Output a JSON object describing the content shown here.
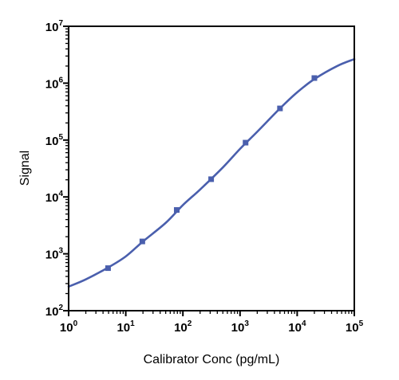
{
  "chart_data": {
    "type": "scatter",
    "title": "",
    "xlabel": "Calibrator Conc (pg/mL)",
    "ylabel": "Signal",
    "x_scale": "log",
    "y_scale": "log",
    "xlim": [
      1,
      100000
    ],
    "ylim": [
      100,
      10000000
    ],
    "x_ticks": [
      {
        "base": "10",
        "exp": "0"
      },
      {
        "base": "10",
        "exp": "1"
      },
      {
        "base": "10",
        "exp": "2"
      },
      {
        "base": "10",
        "exp": "3"
      },
      {
        "base": "10",
        "exp": "4"
      },
      {
        "base": "10",
        "exp": "5"
      }
    ],
    "y_ticks": [
      {
        "base": "10",
        "exp": "2"
      },
      {
        "base": "10",
        "exp": "3"
      },
      {
        "base": "10",
        "exp": "4"
      },
      {
        "base": "10",
        "exp": "5"
      },
      {
        "base": "10",
        "exp": "6"
      },
      {
        "base": "10",
        "exp": "7"
      }
    ],
    "grid": false,
    "legend": "none",
    "series": [
      {
        "kind": "points",
        "color": "#4a5fad",
        "marker": "square",
        "points": [
          {
            "x": 4.9,
            "y": 560
          },
          {
            "x": 19.5,
            "y": 1650
          },
          {
            "x": 78,
            "y": 5900
          },
          {
            "x": 312,
            "y": 20500
          },
          {
            "x": 1250,
            "y": 90000
          },
          {
            "x": 5000,
            "y": 360000
          },
          {
            "x": 20000,
            "y": 1230000
          }
        ]
      },
      {
        "kind": "fit-curve",
        "color": "#4a5fad",
        "points": [
          {
            "x": 1,
            "y": 265
          },
          {
            "x": 2,
            "y": 355
          },
          {
            "x": 5,
            "y": 580
          },
          {
            "x": 10,
            "y": 900
          },
          {
            "x": 20,
            "y": 1650
          },
          {
            "x": 50,
            "y": 3500
          },
          {
            "x": 100,
            "y": 7200
          },
          {
            "x": 200,
            "y": 13500
          },
          {
            "x": 500,
            "y": 33000
          },
          {
            "x": 1000,
            "y": 70000
          },
          {
            "x": 2000,
            "y": 140000
          },
          {
            "x": 5000,
            "y": 360000
          },
          {
            "x": 10000,
            "y": 690000
          },
          {
            "x": 20000,
            "y": 1180000
          },
          {
            "x": 50000,
            "y": 2000000
          },
          {
            "x": 100000,
            "y": 2650000
          }
        ]
      }
    ]
  }
}
